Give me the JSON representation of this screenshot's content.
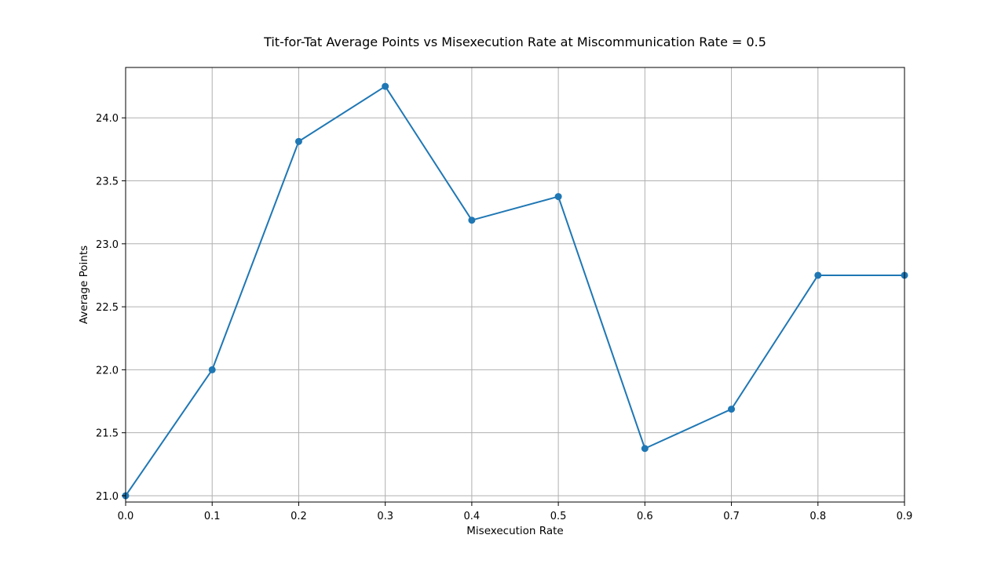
{
  "chart_data": {
    "type": "line",
    "title": "Tit-for-Tat Average Points vs Misexecution Rate at Miscommunication Rate = 0.5",
    "xlabel": "Misexecution Rate",
    "ylabel": "Average Points",
    "x": [
      0.0,
      0.1,
      0.2,
      0.3,
      0.4,
      0.5,
      0.6,
      0.7,
      0.8,
      0.9
    ],
    "series": [
      {
        "values": [
          21.0,
          22.0,
          23.8125,
          24.25,
          23.1875,
          23.375,
          21.375,
          21.6875,
          22.75,
          22.75
        ],
        "color": "#1f77b4",
        "marker": "circle"
      }
    ],
    "xlim": [
      0.0,
      0.9
    ],
    "ylim": [
      20.95,
      24.4
    ],
    "xticks": [
      "0.0",
      "0.1",
      "0.2",
      "0.3",
      "0.4",
      "0.5",
      "0.6",
      "0.7",
      "0.8",
      "0.9"
    ],
    "yticks": [
      "21.0",
      "21.5",
      "22.0",
      "22.5",
      "23.0",
      "23.5",
      "24.0"
    ],
    "grid": true,
    "grid_color": "#b0b0b0"
  }
}
